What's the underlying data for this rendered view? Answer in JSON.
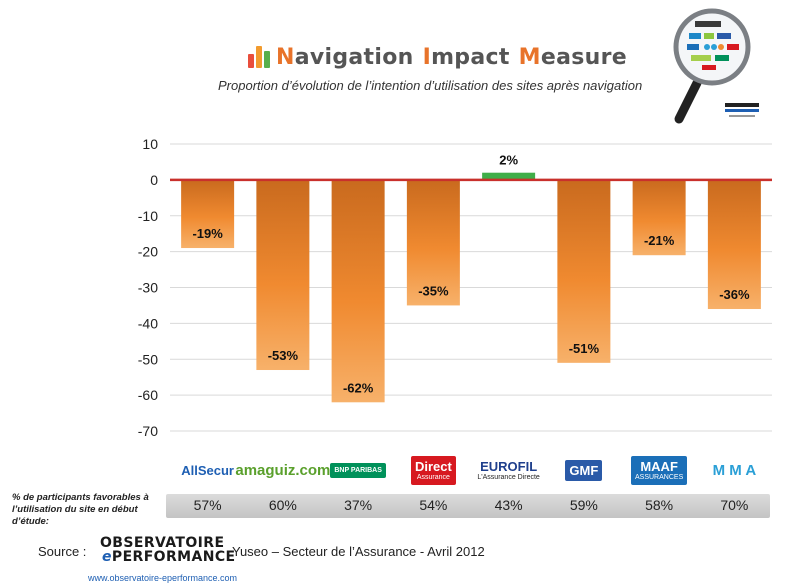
{
  "header": {
    "title_words": [
      {
        "cap": "N",
        "rest": "avigation"
      },
      {
        "cap": "I",
        "rest": "mpact"
      },
      {
        "cap": "M",
        "rest": "easure"
      }
    ],
    "subtitle": "Proportion d’évolution de l’intention d’utilisation des sites après navigation"
  },
  "colors": {
    "negative_bar": "#f08a30",
    "positive_bar": "#3fae49",
    "zero_line": "#c9302c",
    "grid": "#d9d9d9"
  },
  "chart_data": {
    "type": "bar",
    "categories": [
      "AllSecur",
      "amaguiz.com",
      "BNP Paribas",
      "Direct Assurance",
      "EUROFIL",
      "GMF",
      "MAAF",
      "MMA"
    ],
    "values": [
      -19,
      -53,
      -62,
      -35,
      2,
      -51,
      -21,
      -36
    ],
    "data_labels": [
      "-19%",
      "-53%",
      "-62%",
      "-35%",
      "2%",
      "-51%",
      "-21%",
      "-36%"
    ],
    "yticks": [
      10,
      0,
      -10,
      -20,
      -30,
      -40,
      -50,
      -60,
      -70
    ],
    "ylim": [
      -70,
      10
    ],
    "grid": true,
    "legend": "none"
  },
  "brands": [
    {
      "name": "AllSecur",
      "color": "#1e5fb3",
      "icon": "allsecur-logo"
    },
    {
      "name": "amaguiz.com",
      "color": "#5aa02c",
      "icon": "amaguiz-logo"
    },
    {
      "name": "BNP PARIBAS",
      "color": "#00915a",
      "icon": "bnp-paribas-logo"
    },
    {
      "name": "Direct",
      "sub": "Assurance",
      "color": "#d71920",
      "icon": "direct-assurance-logo"
    },
    {
      "name": "EUROFIL",
      "sub": "L'Assurance Directe",
      "color": "#1f3f8c",
      "icon": "eurofil-logo"
    },
    {
      "name": "GMF",
      "color": "#2a5aa8",
      "icon": "gmf-logo"
    },
    {
      "name": "MAAF",
      "sub": "ASSURANCES",
      "color": "#1b6fb8",
      "icon": "maaf-logo"
    },
    {
      "name": "M M A",
      "color": "#2a9fd6",
      "icon": "mma-logo"
    }
  ],
  "favorable": {
    "note": "% de participants favorables à l’utilisation du site en début d’étude:",
    "values": [
      "57%",
      "60%",
      "37%",
      "54%",
      "43%",
      "59%",
      "58%",
      "70%"
    ]
  },
  "footer": {
    "source_label": "Source :",
    "logo_line1": "OBSERVATOIRE",
    "logo_e": "e",
    "logo_line2": "PERFORMANCE",
    "source_text": "Yuseo – Secteur de l’Assurance  -  Avril 2012",
    "url": "www.observatoire-eperformance.com"
  }
}
